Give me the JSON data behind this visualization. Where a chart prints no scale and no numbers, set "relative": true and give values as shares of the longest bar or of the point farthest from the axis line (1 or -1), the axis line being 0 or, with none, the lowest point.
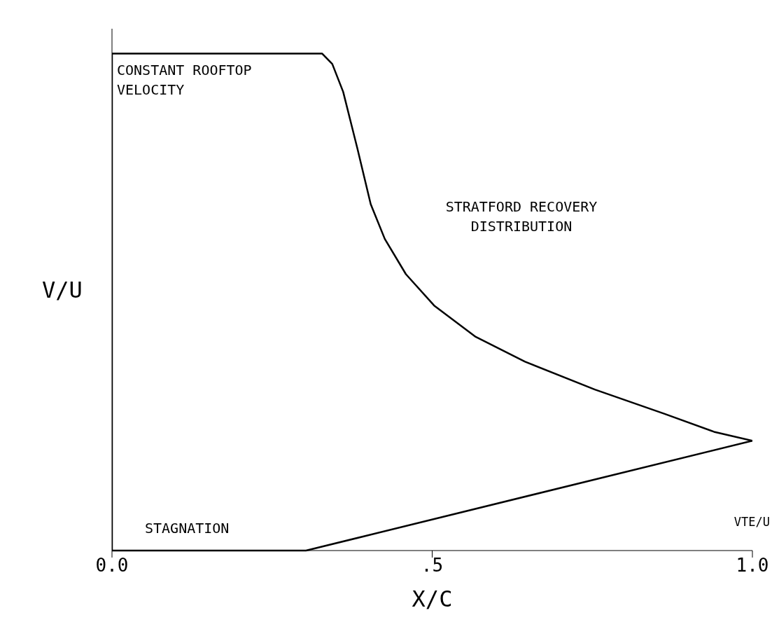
{
  "chart_data": {
    "type": "line",
    "relative": true,
    "xlabel": "X/C",
    "ylabel": "V/U",
    "xlim": [
      0,
      1
    ],
    "xticks": [
      {
        "value": 0,
        "label": "0.0"
      },
      {
        "value": 0.5,
        "label": ".5"
      },
      {
        "value": 1,
        "label": "1.0"
      }
    ],
    "series": [
      {
        "color": "#000000",
        "x": [
          0,
          0,
          0.328,
          0.344,
          0.361,
          0.383,
          0.404,
          0.426,
          0.459,
          0.503,
          0.568,
          0.645,
          0.754,
          0.863,
          0.94,
          1.0
        ],
        "values": [
          0,
          1,
          1,
          0.979,
          0.923,
          0.81,
          0.697,
          0.627,
          0.556,
          0.493,
          0.43,
          0.38,
          0.324,
          0.275,
          0.239,
          0.221
        ]
      },
      {
        "color": "#000000",
        "x": [
          0,
          0.303,
          1.0
        ],
        "values": [
          0,
          0,
          0.221
        ]
      }
    ],
    "annotations": [
      "CONSTANT ROOFTOP VELOCITY",
      "STRATFORD RECOVERY DISTRIBUTION",
      "STAGNATION",
      "VTE/U"
    ],
    "grid": false,
    "legend": false,
    "marker": "none",
    "line_style": "solid"
  }
}
